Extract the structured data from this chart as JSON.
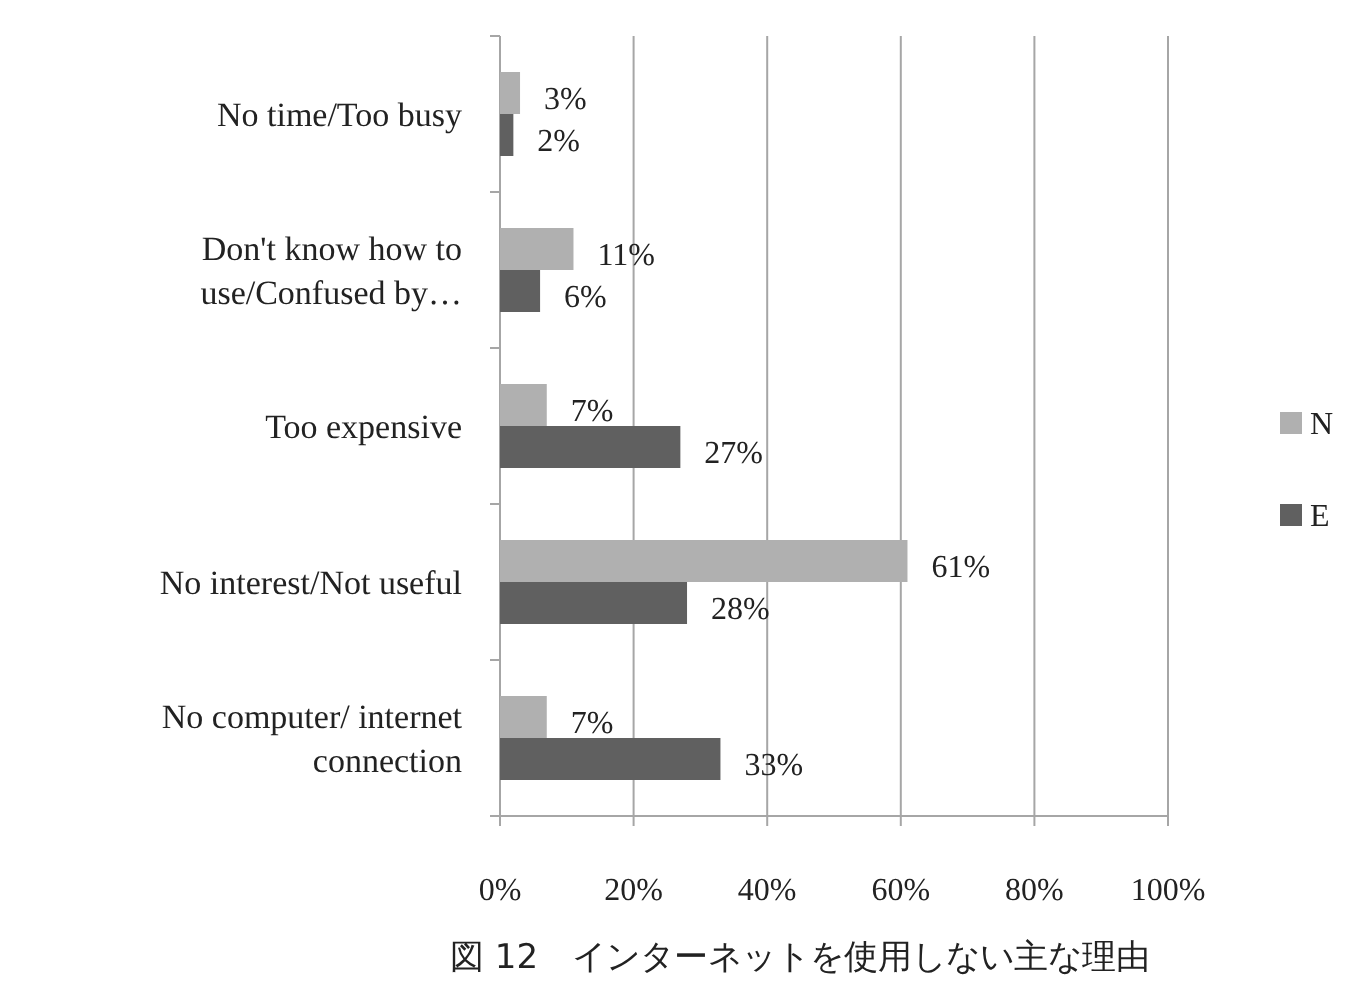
{
  "chart_data": {
    "type": "bar",
    "orientation": "horizontal",
    "title": "図 12　インターネットを使用しない主な理由",
    "categories": [
      "No time/Too busy",
      "Don't know how to\nuse/Confused by…",
      "Too expensive",
      "No interest/Not useful",
      "No computer/ internet\nconnection"
    ],
    "series": [
      {
        "name": "N",
        "color": "#b0b0b0",
        "values": [
          3,
          11,
          7,
          61,
          7
        ],
        "value_labels": [
          "3%",
          "11%",
          "7%",
          "61%",
          "7%"
        ]
      },
      {
        "name": "E",
        "color": "#606060",
        "values": [
          2,
          6,
          27,
          28,
          33
        ],
        "value_labels": [
          "2%",
          "6%",
          "27%",
          "28%",
          "33%"
        ]
      }
    ],
    "xlim": [
      0,
      100
    ],
    "xticks": [
      {
        "value": 0,
        "label": "0%"
      },
      {
        "value": 20,
        "label": "20%"
      },
      {
        "value": 40,
        "label": "40%"
      },
      {
        "value": 60,
        "label": "60%"
      },
      {
        "value": 80,
        "label": "80%"
      },
      {
        "value": 100,
        "label": "100%"
      }
    ],
    "grid": "x",
    "legend": "right"
  }
}
